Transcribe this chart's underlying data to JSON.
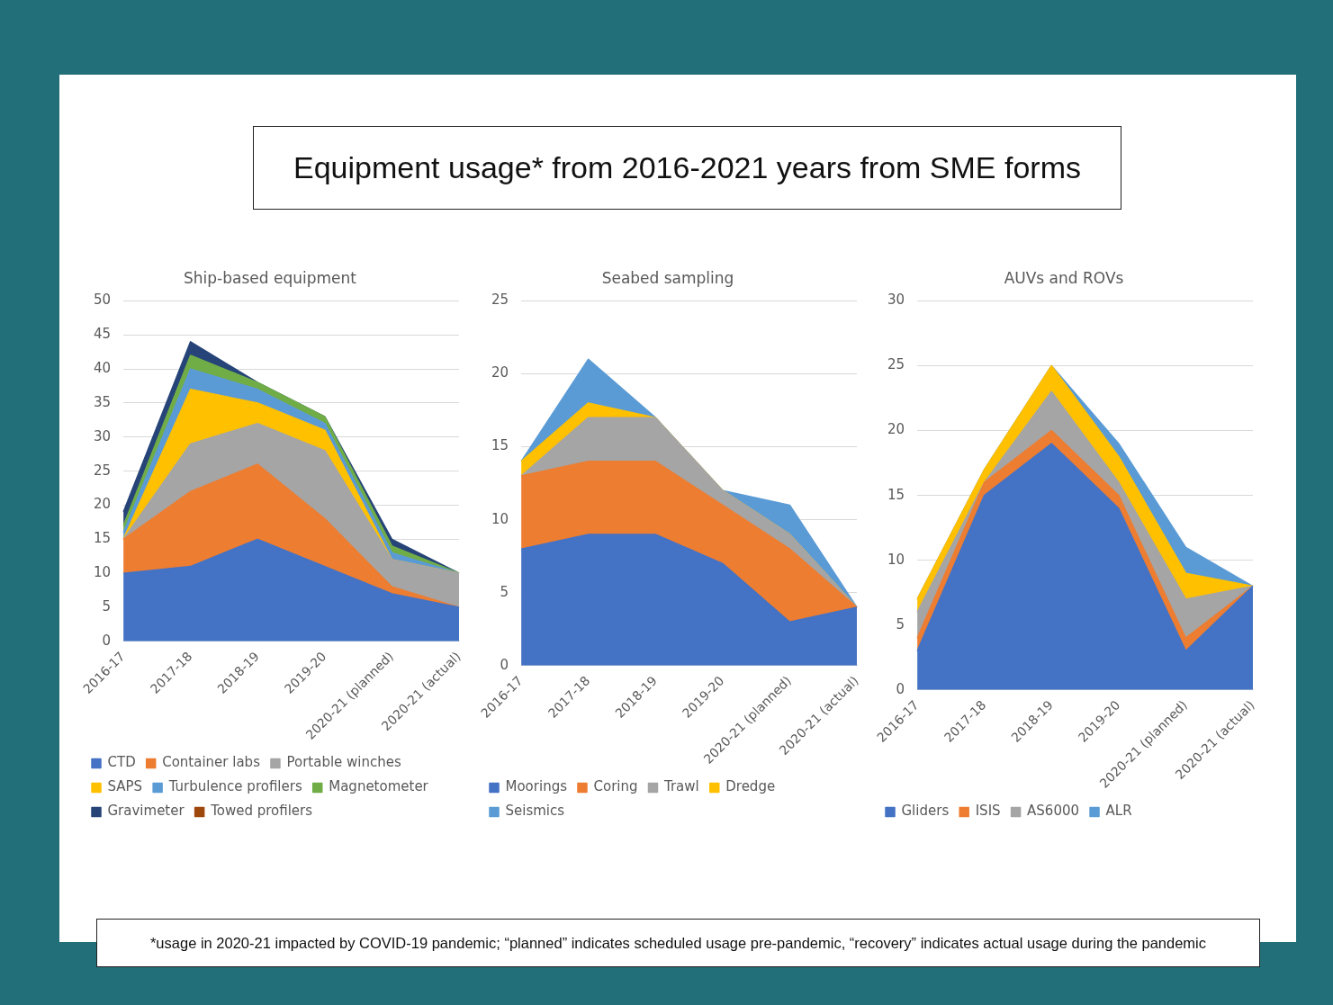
{
  "chart_data": [
    {
      "type": "other",
      "title": "Equipment usage* from 2016-2021 years from SME forms",
      "annotations": [
        "*usage in 2020-21 impacted by COVID-19 pandemic; “planned” indicates scheduled usage pre-pandemic, “recovery” indicates actual usage during the pandemic"
      ]
    },
    {
      "type": "area",
      "title": "Ship-based equipment",
      "stacked": true,
      "grid": "y",
      "legend": "bottom",
      "categories": [
        "2016-17",
        "2017-18",
        "2018-19",
        "2019-20",
        "2020-21 (planned)",
        "2020-21 (actual)"
      ],
      "ylim": [
        0,
        50
      ],
      "yticks": [
        0,
        5,
        10,
        15,
        20,
        25,
        30,
        35,
        40,
        45,
        50
      ],
      "series": [
        {
          "name": "CTD",
          "color": "#4472c4",
          "values": [
            10,
            11,
            15,
            11,
            7,
            5
          ]
        },
        {
          "name": "Container labs",
          "color": "#ed7d31",
          "values": [
            5,
            11,
            11,
            7,
            1,
            0
          ]
        },
        {
          "name": "Portable winches",
          "color": "#a5a5a5",
          "values": [
            0,
            7,
            6,
            10,
            4,
            5
          ]
        },
        {
          "name": "SAPS",
          "color": "#ffc000",
          "values": [
            0,
            8,
            3,
            3,
            0,
            0
          ]
        },
        {
          "name": "Turbulence profilers",
          "color": "#5b9bd5",
          "values": [
            1,
            3,
            2,
            1,
            1,
            0
          ]
        },
        {
          "name": "Magnetometer",
          "color": "#70ad47",
          "values": [
            1,
            2,
            1,
            1,
            1,
            0
          ]
        },
        {
          "name": "Gravimeter",
          "color": "#264478",
          "values": [
            2,
            2,
            0,
            0,
            1,
            0
          ]
        },
        {
          "name": "Towed profilers",
          "color": "#9e480e",
          "values": [
            null,
            null,
            null,
            null,
            null,
            null
          ]
        }
      ]
    },
    {
      "type": "area",
      "title": "Seabed sampling",
      "stacked": true,
      "grid": "y",
      "legend": "bottom",
      "categories": [
        "2016-17",
        "2017-18",
        "2018-19",
        "2019-20",
        "2020-21 (planned)",
        "2020-21 (actual)"
      ],
      "ylim": [
        0,
        25
      ],
      "yticks": [
        0,
        5,
        10,
        15,
        20,
        25
      ],
      "series": [
        {
          "name": "Moorings",
          "color": "#4472c4",
          "values": [
            8,
            9,
            9,
            7,
            3,
            4
          ]
        },
        {
          "name": "Coring",
          "color": "#ed7d31",
          "values": [
            5,
            5,
            5,
            4,
            5,
            0
          ]
        },
        {
          "name": "Trawl",
          "color": "#a5a5a5",
          "values": [
            0,
            3,
            3,
            1,
            1,
            0
          ]
        },
        {
          "name": "Dredge",
          "color": "#ffc000",
          "values": [
            1,
            1,
            0,
            0,
            0,
            0
          ]
        },
        {
          "name": "Seismics",
          "color": "#5b9bd5",
          "values": [
            0,
            3,
            0,
            0,
            2,
            0
          ]
        }
      ]
    },
    {
      "type": "area",
      "title": "AUVs and ROVs",
      "stacked": true,
      "grid": "y",
      "legend": "bottom",
      "categories": [
        "2016-17",
        "2017-18",
        "2018-19",
        "2019-20",
        "2020-21 (planned)",
        "2020-21 (actual)"
      ],
      "ylim": [
        0,
        30
      ],
      "yticks": [
        0,
        5,
        10,
        15,
        20,
        25,
        30
      ],
      "series": [
        {
          "name": "Gliders",
          "color": "#4472c4",
          "values": [
            3,
            15,
            19,
            14,
            3,
            8
          ]
        },
        {
          "name": "ISIS",
          "color": "#ed7d31",
          "values": [
            1,
            1,
            1,
            1,
            1,
            0
          ]
        },
        {
          "name": "AS6000",
          "color": "#a5a5a5",
          "values": [
            2,
            0,
            3,
            1,
            3,
            0
          ]
        },
        {
          "color": "#ffc000",
          "values": [
            1,
            1,
            2,
            2,
            2,
            0
          ]
        },
        {
          "name": "ALR",
          "color": "#5b9bd5",
          "values": [
            0,
            0,
            0,
            1,
            2,
            0
          ]
        },
        {
          "color": "#70ad47",
          "values": [
            null,
            null,
            null,
            null,
            null,
            null
          ]
        }
      ]
    }
  ]
}
